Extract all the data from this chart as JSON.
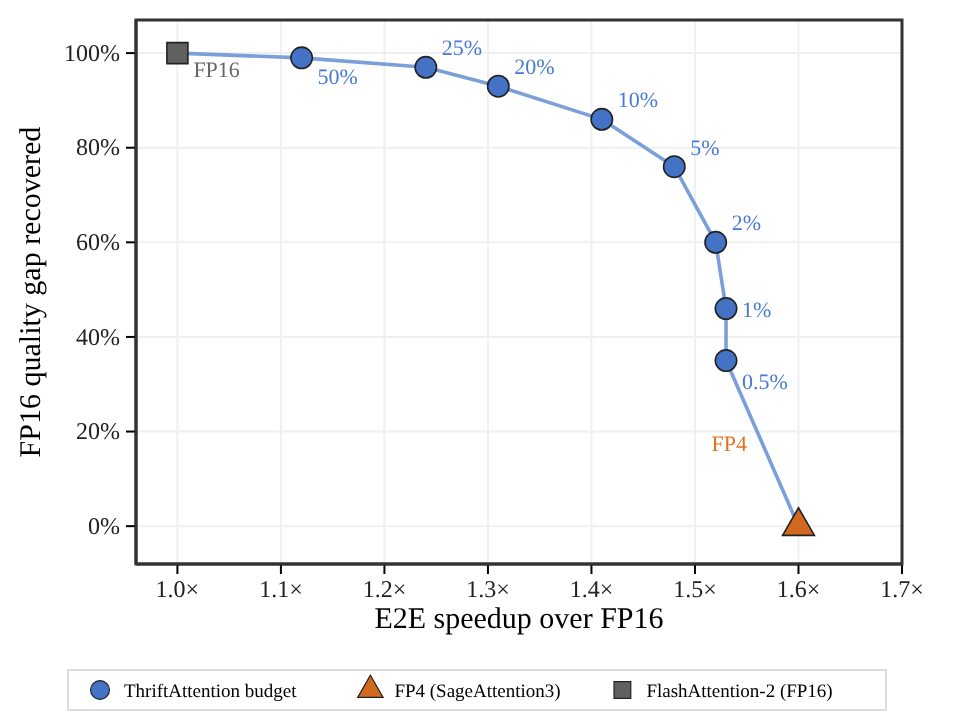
{
  "chart_data": {
    "type": "scatter",
    "xlabel": "E2E speedup over FP16",
    "ylabel": "FP16 quality gap recovered",
    "xlim": [
      0.96,
      1.7
    ],
    "ylim": [
      -8,
      107
    ],
    "xticks": [
      {
        "value": 1.0,
        "label": "1.0×"
      },
      {
        "value": 1.1,
        "label": "1.1×"
      },
      {
        "value": 1.2,
        "label": "1.2×"
      },
      {
        "value": 1.3,
        "label": "1.3×"
      },
      {
        "value": 1.4,
        "label": "1.4×"
      },
      {
        "value": 1.5,
        "label": "1.5×"
      },
      {
        "value": 1.6,
        "label": "1.6×"
      },
      {
        "value": 1.7,
        "label": "1.7×"
      }
    ],
    "yticks": [
      {
        "value": 0,
        "label": "0%"
      },
      {
        "value": 20,
        "label": "20%"
      },
      {
        "value": 40,
        "label": "40%"
      },
      {
        "value": 60,
        "label": "60%"
      },
      {
        "value": 80,
        "label": "80%"
      },
      {
        "value": 100,
        "label": "100%"
      }
    ],
    "grid": true,
    "legend": "bottom",
    "series": [
      {
        "type": "line",
        "color": "#7b9fd8",
        "marker": "none",
        "x": [
          1.0,
          1.12,
          1.24,
          1.31,
          1.41,
          1.48,
          1.52,
          1.53,
          1.53,
          1.6
        ],
        "values": [
          100,
          99,
          97,
          93,
          86,
          76,
          60,
          46,
          35,
          0
        ]
      },
      {
        "name": "ThriftAttention budget",
        "color": "#4472c4",
        "marker": "circle",
        "x": [
          1.12,
          1.24,
          1.31,
          1.41,
          1.48,
          1.52,
          1.53,
          1.53
        ],
        "values": [
          99,
          97,
          93,
          86,
          76,
          60,
          46,
          35
        ]
      },
      {
        "name": "FP4 (SageAttention3)",
        "color": "#d2691e",
        "marker": "triangle",
        "x": [
          1.6
        ],
        "values": [
          0
        ]
      },
      {
        "name": "FlashAttention-2 (FP16)",
        "color": "#606060",
        "marker": "square",
        "x": [
          1.0
        ],
        "values": [
          100
        ]
      }
    ],
    "annotations": [
      {
        "text": "FP16",
        "x": 1.0,
        "y": 100
      },
      {
        "text": "50%",
        "x": 1.12,
        "y": 99
      },
      {
        "text": "25%",
        "x": 1.24,
        "y": 97
      },
      {
        "text": "20%",
        "x": 1.31,
        "y": 93
      },
      {
        "text": "10%",
        "x": 1.41,
        "y": 86
      },
      {
        "text": "5%",
        "x": 1.48,
        "y": 76
      },
      {
        "text": "2%",
        "x": 1.52,
        "y": 60
      },
      {
        "text": "1%",
        "x": 1.53,
        "y": 46
      },
      {
        "text": "0.5%",
        "x": 1.53,
        "y": 35
      },
      {
        "text": "FP4",
        "x": 1.57,
        "y": 15
      }
    ]
  }
}
